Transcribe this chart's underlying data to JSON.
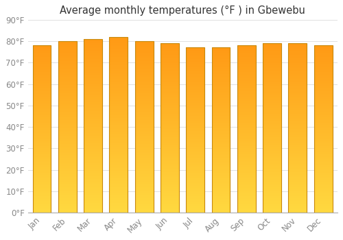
{
  "months": [
    "Jan",
    "Feb",
    "Mar",
    "Apr",
    "May",
    "Jun",
    "Jul",
    "Aug",
    "Sep",
    "Oct",
    "Nov",
    "Dec"
  ],
  "values": [
    78,
    80,
    81,
    82,
    80,
    79,
    77,
    77,
    78,
    79,
    79,
    78
  ],
  "title": "Average monthly temperatures (°F ) in Gbewebu",
  "ylim": [
    0,
    90
  ],
  "yticks": [
    0,
    10,
    20,
    30,
    40,
    50,
    60,
    70,
    80,
    90
  ],
  "background_color": "#FFFFFF",
  "plot_bg_color": "#FFFFFF",
  "grid_color": "#E0E0E0",
  "title_fontsize": 10.5,
  "tick_fontsize": 8.5,
  "bar_color_bottom": "#FFCD44",
  "bar_color_top": "#FFA020",
  "bar_edge_color": "#C8880A",
  "bar_width": 0.72,
  "gradient_steps": 200
}
